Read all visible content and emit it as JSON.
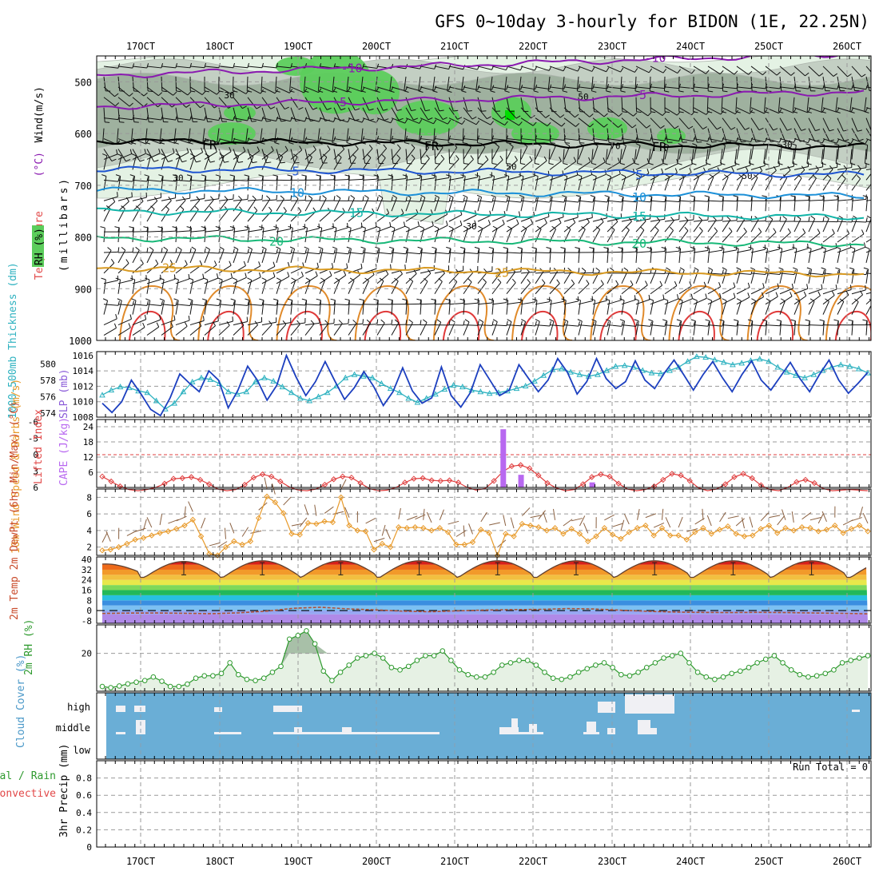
{
  "title": "GFS 0~10day 3-hourly for BIDON (1E, 22.25N)",
  "date_labels": [
    "17OCT",
    "18OCT",
    "19OCT",
    "20OCT",
    "21OCT",
    "22OCT",
    "23OCT",
    "24OCT",
    "25OCT",
    "26OCT"
  ],
  "colors": {
    "rh_light": "#e4f2e4",
    "rh_mid": "#c3cfc3",
    "rh_dark": "#9fb19f",
    "rh_green": "#5ccd5c",
    "cloud_bg": "#6aaed6",
    "thickness": "#2eb2c0",
    "slp": "#1c3fbf",
    "lifted": "#e04040",
    "cape": "#b868f0",
    "wind10": "#e89a2a",
    "rh2m": "#2e9a2e"
  },
  "chart_data": [
    {
      "id": "upper_air",
      "type": "contour",
      "title": "Temperature / RH / Wind cross section",
      "ylabel_parts": [
        "Temperature",
        "(°C)",
        "Wind",
        "(m/s)",
        "RH (%)",
        "(millibars)"
      ],
      "yticks": [
        "500",
        "600",
        "700",
        "800",
        "900",
        "1000"
      ],
      "ylim": [
        450,
        1000
      ],
      "isotherms": [
        {
          "label": "-10",
          "p": 488,
          "color": "#8a1ab0"
        },
        {
          "label": "-5",
          "p": 548,
          "color": "#8a1ab0"
        },
        {
          "label": "FR",
          "p": 614,
          "color": "#000000"
        },
        {
          "label": "5",
          "p": 668,
          "color": "#1e54d0"
        },
        {
          "label": "10",
          "p": 709,
          "color": "#1c90d8"
        },
        {
          "label": "15",
          "p": 750,
          "color": "#12b4a8"
        },
        {
          "label": "20",
          "p": 802,
          "color": "#18b878"
        },
        {
          "label": "25",
          "p": 860,
          "color": "#d89a22"
        }
      ],
      "rh_contour_labels": [
        "30",
        "50",
        "70"
      ]
    },
    {
      "id": "thickness_slp",
      "type": "line",
      "ylabel_left": "1000-500mb Thickness (dm)",
      "ylabel_right": "SLP (mb)",
      "thickness_ticks": [
        "574",
        "576",
        "578",
        "580"
      ],
      "slp_ticks": [
        "1008",
        "1010",
        "1012",
        "1014",
        "1016"
      ],
      "series": [
        {
          "name": "Thickness (dm)",
          "ylim": [
            573.5,
            581.5
          ],
          "values": [
            576.2,
            576.8,
            577.2,
            577.1,
            576.7,
            576.5,
            575.5,
            574.5,
            575.2,
            576.6,
            577.8,
            578.3,
            578.1,
            577.6,
            576.6,
            576.3,
            576.6,
            577.8,
            578.3,
            577.9,
            577.2,
            576.5,
            575.8,
            575.5,
            576.0,
            576.5,
            577.3,
            578.3,
            578.7,
            578.5,
            578.3,
            577.6,
            577.0,
            576.5,
            575.8,
            575.3,
            575.8,
            576.3,
            576.9,
            577.4,
            577.2,
            576.8,
            576.6,
            576.4,
            576.5,
            576.7,
            577.0,
            577.3,
            577.9,
            578.6,
            579.3,
            579.4,
            579.0,
            578.7,
            578.5,
            578.7,
            579.2,
            579.7,
            579.8,
            579.6,
            579.2,
            578.9,
            578.8,
            579.2,
            579.6,
            580.3,
            580.9,
            580.8,
            580.5,
            580.2,
            579.9,
            580.1,
            580.4,
            580.6,
            580.3,
            579.6,
            579.0,
            578.6,
            578.3,
            578.7,
            579.2,
            579.6,
            579.9,
            579.7,
            579.4,
            578.9
          ]
        },
        {
          "name": "SLP (mb)",
          "ylim": [
            1008,
            1016.5
          ],
          "values": [
            1009.8,
            1008.6,
            1010.0,
            1012.8,
            1011.0,
            1009.0,
            1008.2,
            1010.5,
            1013.6,
            1012.4,
            1011.3,
            1014.0,
            1012.8,
            1009.2,
            1011.5,
            1014.6,
            1012.8,
            1010.2,
            1012.1,
            1016.0,
            1013.2,
            1010.8,
            1012.6,
            1015.2,
            1012.7,
            1010.3,
            1011.8,
            1013.9,
            1012.0,
            1009.5,
            1011.3,
            1014.4,
            1011.4,
            1009.8,
            1010.5,
            1014.5,
            1010.8,
            1009.3,
            1011.2,
            1014.8,
            1012.8,
            1010.8,
            1011.5,
            1014.8,
            1013.0,
            1011.3,
            1012.8,
            1015.6,
            1013.8,
            1011.0,
            1012.6,
            1015.6,
            1013.0,
            1011.7,
            1012.6,
            1015.3,
            1012.8,
            1011.7,
            1013.7,
            1015.4,
            1013.5,
            1011.5,
            1013.5,
            1015.2,
            1013.1,
            1011.3,
            1013.5,
            1015.3,
            1012.8,
            1011.5,
            1013.3,
            1015.1,
            1013.0,
            1011.3,
            1013.5,
            1015.4,
            1012.8,
            1011.1,
            1012.4,
            1013.8
          ]
        }
      ]
    },
    {
      "id": "li_cape",
      "type": "line+bar",
      "ylabel_left": "Lifted Index",
      "ylabel_right": "CAPE (J/kg)",
      "li_ticks": [
        "-6",
        "-3",
        "0",
        "3",
        "6"
      ],
      "cape_ticks": [
        "6",
        "12",
        "18",
        "24"
      ],
      "series": [
        {
          "name": "Lifted Index",
          "values": [
            4.0,
            4.9,
            5.8,
            6.4,
            6.6,
            6.4,
            6.0,
            5.3,
            4.4,
            4.3,
            4.1,
            4.6,
            5.4,
            6.3,
            6.6,
            6.4,
            5.5,
            4.2,
            3.6,
            4.0,
            4.9,
            5.9,
            6.5,
            6.6,
            6.3,
            5.5,
            4.5,
            4.0,
            4.2,
            5.2,
            6.2,
            6.6,
            6.5,
            6.0,
            5.1,
            4.4,
            4.3,
            4.7,
            4.8,
            4.7,
            5.1,
            6.0,
            6.5,
            6.2,
            4.8,
            3.1,
            2.1,
            1.9,
            2.5,
            3.8,
            5.2,
            6.1,
            6.6,
            6.4,
            5.4,
            4.1,
            3.6,
            4.0,
            5.3,
            6.3,
            6.6,
            6.4,
            5.8,
            4.6,
            3.5,
            3.8,
            4.8,
            6.1,
            6.6,
            6.3,
            5.4,
            4.1,
            3.5,
            4.3,
            5.6,
            6.4,
            6.6,
            6.0,
            5.0,
            4.6,
            5.2,
            6.2,
            6.6,
            6.5,
            6.4,
            6.5,
            6.6
          ]
        },
        {
          "name": "CAPE (J/kg)",
          "bars": [
            {
              "i": 45,
              "v": 23
            },
            {
              "i": 47,
              "v": 5
            },
            {
              "i": 55,
              "v": 2
            }
          ]
        }
      ]
    },
    {
      "id": "wind10",
      "type": "line",
      "ylabel": "10m Wind Speed & Barbs (m/s)",
      "yticks": [
        "2",
        "4",
        "6",
        "8"
      ],
      "ylim": [
        1,
        9
      ],
      "series": [
        {
          "name": "10m Wind Speed",
          "values": [
            1.6,
            1.7,
            2.0,
            2.4,
            2.9,
            3.1,
            3.4,
            3.7,
            3.9,
            4.2,
            4.6,
            5.3,
            3.3,
            1.2,
            1.0,
            2.0,
            2.7,
            2.3,
            2.7,
            5.5,
            8.1,
            7.4,
            6.1,
            3.6,
            3.5,
            4.9,
            4.8,
            5.1,
            5.0,
            8.0,
            4.6,
            4.0,
            3.9,
            1.7,
            2.4,
            2.0,
            4.4,
            4.3,
            4.4,
            4.3,
            4.0,
            4.3,
            3.8,
            2.3,
            2.3,
            2.6,
            4.1,
            3.7,
            1.0,
            3.6,
            3.3,
            4.8,
            4.6,
            4.4,
            4.0,
            4.3,
            3.6,
            4.2,
            3.6,
            2.7,
            3.3,
            4.3,
            3.5,
            3.0,
            3.8,
            4.3,
            4.6,
            3.4,
            4.3,
            3.4,
            3.4,
            2.9,
            3.8,
            4.3,
            3.6,
            4.1,
            4.5,
            3.6,
            3.3,
            3.4,
            4.2,
            4.6,
            3.7,
            4.3,
            4.0,
            4.4,
            4.3,
            3.9,
            4.1,
            4.6,
            3.7,
            4.2,
            4.6,
            3.9
          ]
        }
      ]
    },
    {
      "id": "temp2m",
      "type": "area",
      "ylabel": "2m Temp 2m DewPt (6hr Min/Max) (°C)",
      "yticks": [
        "-8",
        "0",
        "8",
        "16",
        "24",
        "32",
        "40"
      ],
      "ylim": [
        -10,
        42
      ],
      "series": [
        {
          "name": "2m Temp",
          "daily_min": [
            28.5,
            26.0,
            26.0,
            26.0,
            26.0,
            26.0,
            26.0,
            26.0,
            26.0,
            26.0
          ],
          "daily_max": [
            36.5,
            38.5,
            39.0,
            39.0,
            39.0,
            39.0,
            39.0,
            39.0,
            39.0,
            39.0
          ]
        },
        {
          "name": "2m DewPt",
          "values": [
            -2.3,
            -2.0,
            -1.9,
            -2.2,
            -2.5,
            -1.8,
            -0.5,
            1.8,
            2.6,
            1.3,
            0.5,
            -0.5,
            -0.9,
            -0.2,
            0.4,
            0.7,
            0.9,
            1.5,
            1.2,
            0.2,
            -0.6,
            -1.2,
            -1.5,
            -1.6,
            -1.4,
            -1.6,
            -1.9,
            -2.2,
            -2.6
          ]
        }
      ]
    },
    {
      "id": "rh2m",
      "type": "area",
      "ylabel": "2m RH (%)",
      "yticks": [
        "20"
      ],
      "ylim": [
        4,
        32
      ],
      "series": [
        {
          "name": "2m RH",
          "values": [
            6,
            5.5,
            6.2,
            7.1,
            7.8,
            8.5,
            10,
            8.2,
            6,
            6,
            7,
            9.5,
            10.5,
            10.5,
            11.5,
            16,
            11,
            9,
            8.5,
            9.5,
            12,
            14.5,
            26,
            27.5,
            29.5,
            24,
            12.5,
            8.5,
            12,
            15,
            18,
            19,
            20,
            18,
            14,
            13,
            14.5,
            17,
            19,
            19,
            21,
            17,
            13,
            11,
            10,
            10,
            12,
            15,
            16,
            17,
            17,
            15,
            12,
            9.5,
            9,
            10,
            12,
            13.5,
            15,
            16,
            14,
            11,
            10.5,
            12,
            14,
            16,
            18,
            19,
            20,
            16,
            12,
            10,
            9,
            10,
            11.5,
            12.5,
            14,
            16,
            17.5,
            19,
            16,
            13,
            11,
            10,
            10.5,
            11.5,
            13,
            16,
            17,
            18,
            19
          ]
        }
      ]
    },
    {
      "id": "cloud_cover",
      "type": "bar",
      "ylabel": "Cloud Cover (%)",
      "levels": [
        "high",
        "middle",
        "low"
      ]
    },
    {
      "id": "precip",
      "type": "bar",
      "ylabel_parts": [
        "Total / Rain",
        "Convective",
        "3hr Precip (mm)"
      ],
      "yticks": [
        "0",
        "0.2",
        "0.4",
        "0.6",
        "0.8"
      ],
      "ylim": [
        0,
        1.0
      ],
      "annotation": "Run Total = 0",
      "values": []
    }
  ]
}
